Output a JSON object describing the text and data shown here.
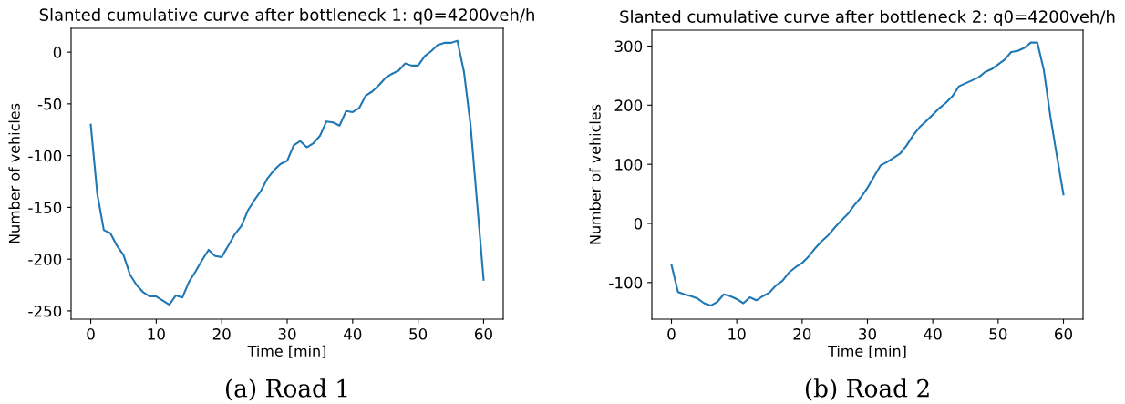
{
  "chart_data": [
    {
      "type": "line",
      "title": "Slanted cumulative curve after bottleneck 1: q0=4200veh/h",
      "xlabel": "Time [min]",
      "ylabel": "Number of vehicles",
      "annotations": [
        "(a) Road 1"
      ],
      "x": [
        0,
        1,
        2,
        3,
        4,
        5,
        6,
        7,
        8,
        9,
        10,
        11,
        12,
        13,
        14,
        15,
        16,
        17,
        18,
        19,
        20,
        21,
        22,
        23,
        24,
        25,
        26,
        27,
        28,
        29,
        30,
        31,
        32,
        33,
        34,
        35,
        36,
        37,
        38,
        39,
        40,
        41,
        42,
        43,
        44,
        45,
        46,
        47,
        48,
        49,
        50,
        51,
        52,
        53,
        54,
        55,
        56,
        57,
        58,
        59,
        60
      ],
      "series": [
        {
          "color": "#1f77b4",
          "values": [
            -70,
            -137,
            -172,
            -175,
            -187,
            -196,
            -215,
            -225,
            -232,
            -236,
            -236,
            -240,
            -244,
            -235,
            -237,
            -222,
            -212,
            -201,
            -191,
            -197,
            -198,
            -187,
            -176,
            -168,
            -153,
            -143,
            -134,
            -122,
            -114,
            -108,
            -105,
            -90,
            -86,
            -92,
            -88,
            -81,
            -67,
            -68,
            -71,
            -57,
            -58,
            -54,
            -42,
            -38,
            -32,
            -25,
            -21,
            -18,
            -11,
            -13,
            -13,
            -4,
            1,
            7,
            9,
            9,
            11,
            -19,
            -70,
            -145,
            -220
          ]
        }
      ],
      "xlim": [
        -3,
        63
      ],
      "ylim": [
        -258,
        23
      ],
      "xticks": [
        0,
        10,
        20,
        30,
        40,
        50,
        60
      ],
      "yticks": [
        -250,
        -200,
        -150,
        -100,
        -50,
        0
      ],
      "grid": false,
      "legend": false
    },
    {
      "type": "line",
      "title": "Slanted cumulative curve after bottleneck 2: q0=4200veh/h",
      "xlabel": "Time [min]",
      "ylabel": "Number of vehicles",
      "annotations": [
        "(b) Road 2"
      ],
      "x": [
        0,
        1,
        2,
        3,
        4,
        5,
        6,
        7,
        8,
        9,
        10,
        11,
        12,
        13,
        14,
        15,
        16,
        17,
        18,
        19,
        20,
        21,
        22,
        23,
        24,
        25,
        26,
        27,
        28,
        29,
        30,
        31,
        32,
        33,
        34,
        35,
        36,
        37,
        38,
        39,
        40,
        41,
        42,
        43,
        44,
        45,
        46,
        47,
        48,
        49,
        50,
        51,
        52,
        53,
        54,
        55,
        56,
        57,
        58,
        59,
        60
      ],
      "series": [
        {
          "color": "#1f77b4",
          "values": [
            -70,
            -116,
            -120,
            -123,
            -127,
            -135,
            -139,
            -133,
            -120,
            -123,
            -128,
            -135,
            -125,
            -130,
            -123,
            -117,
            -105,
            -97,
            -83,
            -74,
            -67,
            -56,
            -42,
            -30,
            -20,
            -7,
            5,
            16,
            31,
            44,
            60,
            79,
            98,
            104,
            111,
            118,
            132,
            149,
            163,
            173,
            184,
            195,
            204,
            215,
            232,
            237,
            242,
            247,
            256,
            261,
            269,
            277,
            290,
            292,
            297,
            306,
            306,
            259,
            181,
            114,
            49
          ]
        }
      ],
      "xlim": [
        -3,
        63
      ],
      "ylim": [
        -162,
        327
      ],
      "xticks": [
        0,
        10,
        20,
        30,
        40,
        50,
        60
      ],
      "yticks": [
        -100,
        0,
        100,
        200,
        300
      ],
      "grid": false,
      "legend": false
    }
  ]
}
